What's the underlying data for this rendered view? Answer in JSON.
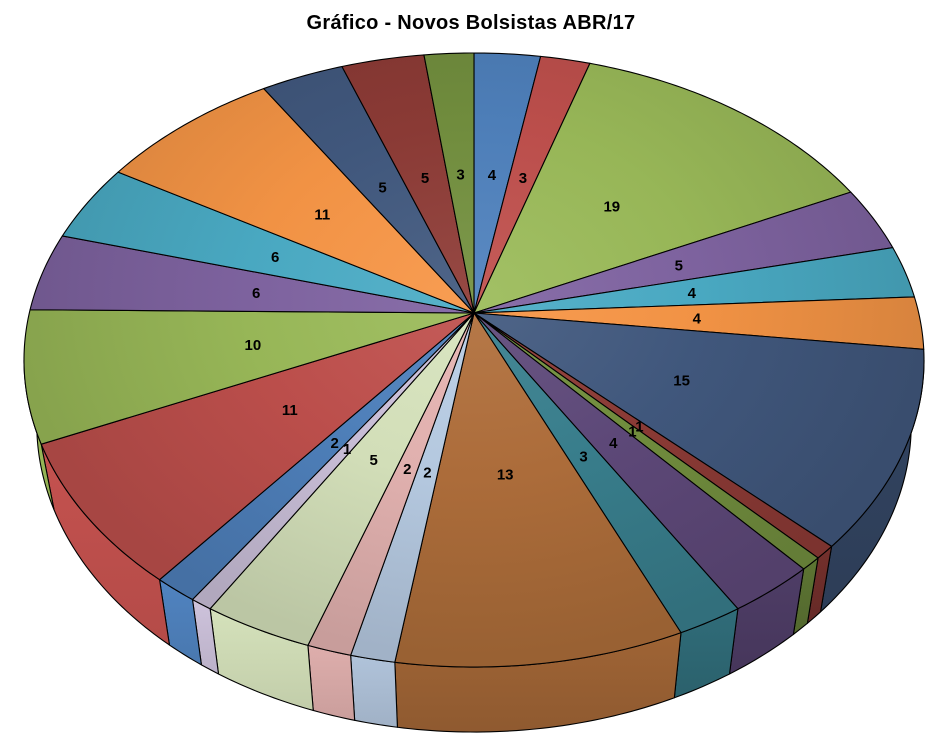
{
  "chart_data": {
    "type": "pie",
    "style": "3d",
    "title": "Gráfico - Novos Bolsistas ABR/17",
    "values": [
      4,
      3,
      19,
      5,
      4,
      4,
      15,
      1,
      1,
      4,
      3,
      13,
      2,
      2,
      5,
      1,
      2,
      11,
      10,
      6,
      6,
      11,
      5,
      5,
      3
    ],
    "data_labels": [
      "4",
      "3",
      "19",
      "5",
      "4",
      "4",
      "15",
      "1",
      "1",
      "4",
      "3",
      "13",
      "2",
      "2",
      "5",
      "1",
      "2",
      "11",
      "10",
      "6",
      "6",
      "11",
      "5",
      "5",
      "3"
    ],
    "colors": [
      "#4F81BD",
      "#C0504D",
      "#9BBB59",
      "#8064A2",
      "#4BACC6",
      "#F79646",
      "#42597F",
      "#8E3B36",
      "#73903F",
      "#5F4A7B",
      "#39808F",
      "#B06F3B",
      "#B9CDE5",
      "#E6B4B2",
      "#D7E4BD",
      "#CCC1DA",
      "#4F81BD",
      "#C0504D",
      "#9BBB59",
      "#8064A2",
      "#4BACC6",
      "#F79646",
      "#42597F",
      "#8E3B36",
      "#73903F"
    ],
    "start_angle_deg": 0,
    "legend": "none",
    "background": "#FFFFFF",
    "title_color": "#000000",
    "label_color": "#000000",
    "outline_color": "#000000"
  }
}
